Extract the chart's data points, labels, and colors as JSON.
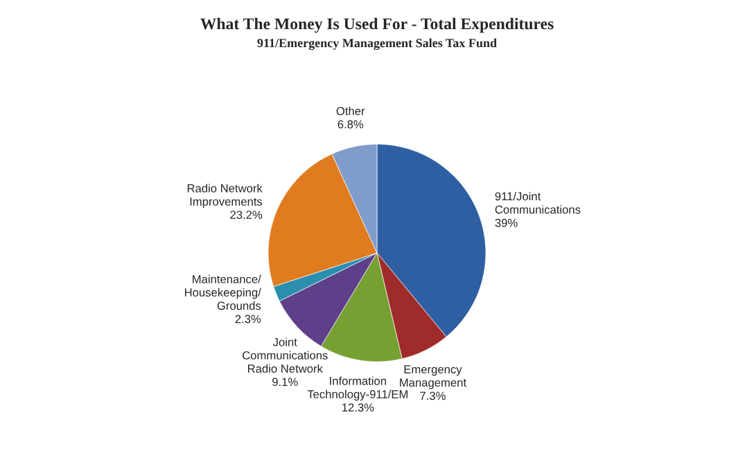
{
  "chart_data": {
    "type": "pie",
    "title": "What The Money Is Used For - Total Expenditures",
    "subtitle": "911/Emergency Management Sales Tax Fund",
    "categories": [
      "911/Joint\nCommunications",
      "Emergency\nManagement",
      "Information\nTechnology-911/EM",
      "Joint\nCommunications\nRadio Network",
      "Maintenance/\nHousekeeping/\nGrounds",
      "Radio Network\nImprovements",
      "Other"
    ],
    "values": [
      39,
      7.3,
      12.3,
      9.1,
      2.3,
      23.2,
      6.8
    ],
    "value_labels": [
      "39%",
      "7.3%",
      "12.3%",
      "9.1%",
      "2.3%",
      "23.2%",
      "6.8%"
    ],
    "colors": [
      "#2e5fa3",
      "#a02b2b",
      "#77a033",
      "#5e3f8a",
      "#2a8fad",
      "#e07b20",
      "#7f9ccb"
    ],
    "legend": false
  }
}
